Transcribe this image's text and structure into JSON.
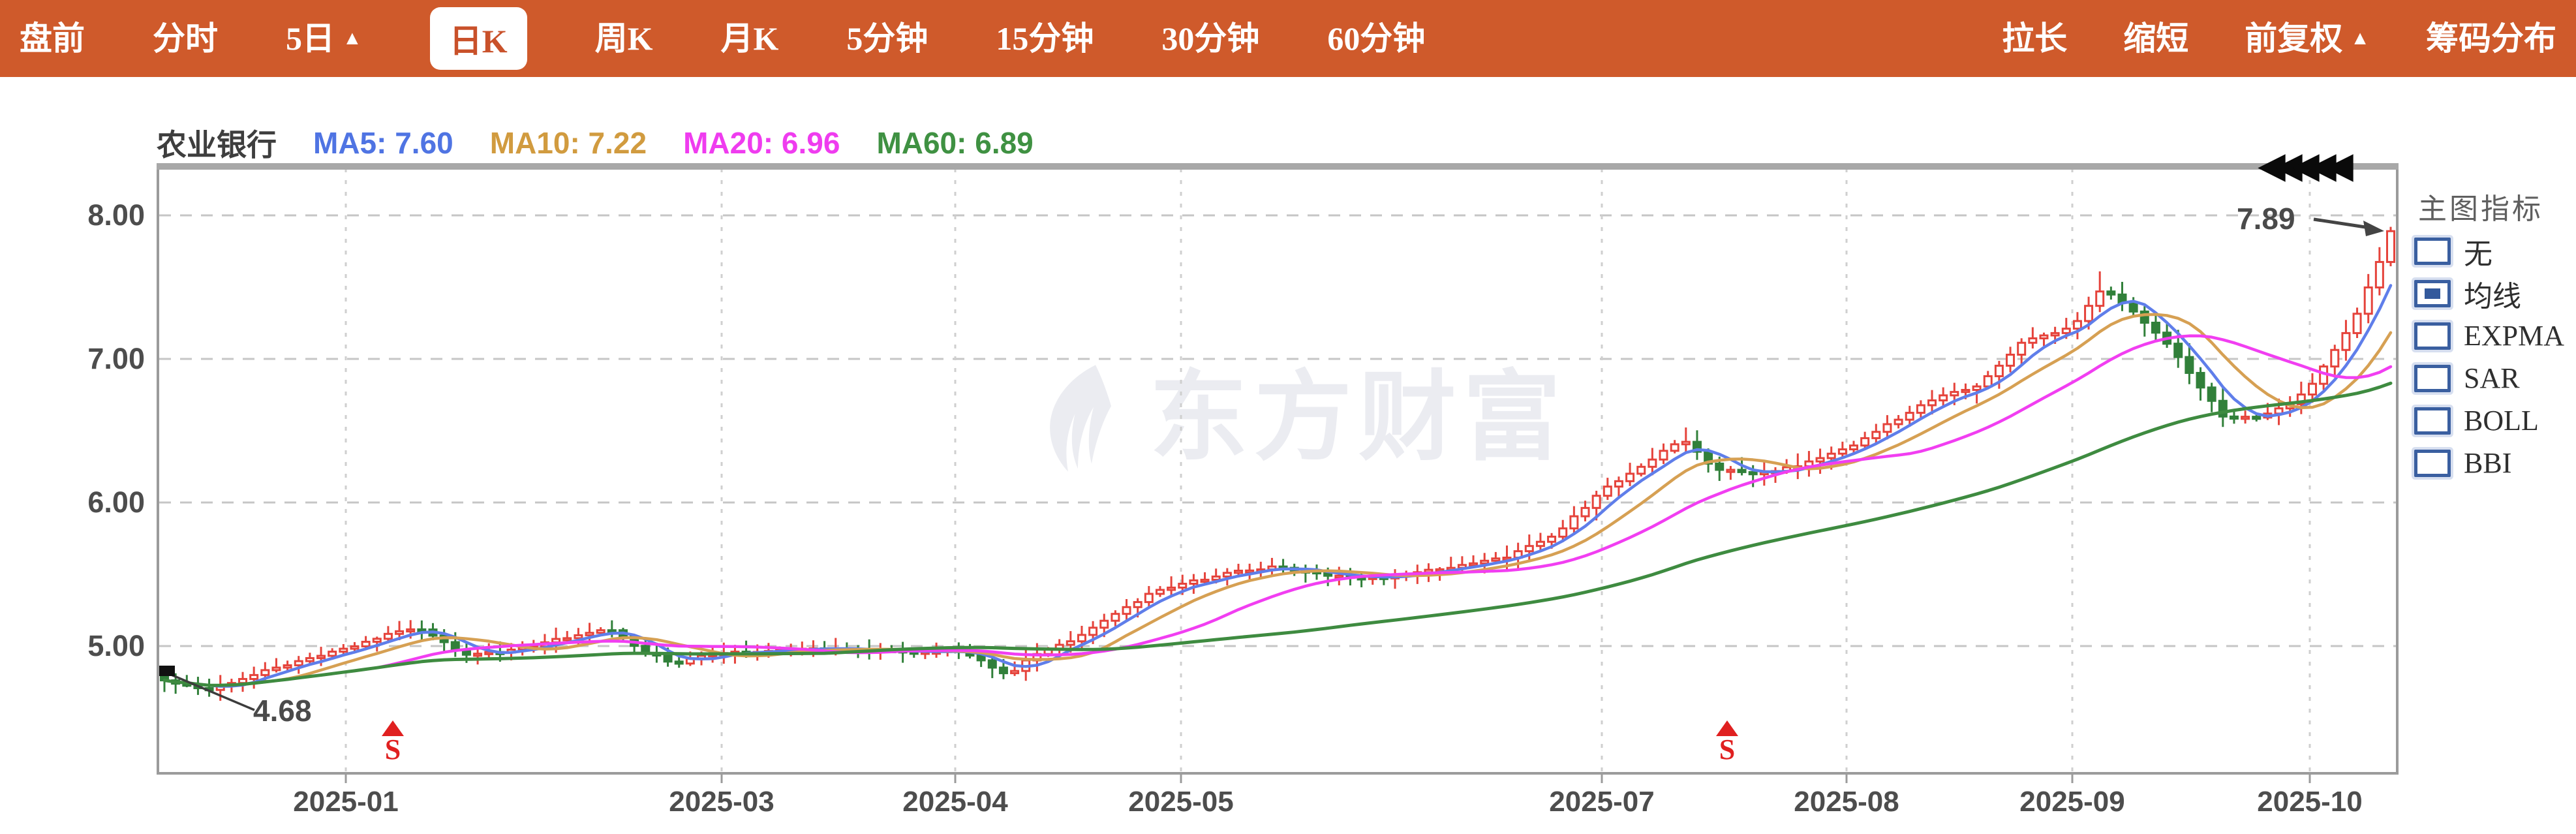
{
  "toolbar": {
    "background": "#cf5a2b",
    "left_items": [
      {
        "label": "盘前",
        "selected": false
      },
      {
        "label": "分时",
        "selected": false
      },
      {
        "label": "5日",
        "arrow": "▲",
        "selected": false
      },
      {
        "label": "日K",
        "selected": true
      },
      {
        "label": "周K",
        "selected": false
      },
      {
        "label": "月K",
        "selected": false
      },
      {
        "label": "5分钟",
        "selected": false
      },
      {
        "label": "15分钟",
        "selected": false
      },
      {
        "label": "30分钟",
        "selected": false
      },
      {
        "label": "60分钟",
        "selected": false
      }
    ],
    "right_items": [
      {
        "label": "拉长"
      },
      {
        "label": "缩短"
      },
      {
        "label": "前复权",
        "arrow": "▲"
      },
      {
        "label": "筹码分布"
      }
    ]
  },
  "legend": {
    "stock_name": "农业银行",
    "ma_items": [
      {
        "label": "MA5: 7.60",
        "color": "#4f74e3"
      },
      {
        "label": "MA10: 7.22",
        "color": "#d19b3f"
      },
      {
        "label": "MA20: 6.96",
        "color": "#ef3cef"
      },
      {
        "label": "MA60: 6.89",
        "color": "#3f9142"
      }
    ]
  },
  "indicator_panel": {
    "title": "主图指标",
    "options": [
      {
        "label": "无",
        "checked": false
      },
      {
        "label": "均线",
        "checked": true
      },
      {
        "label": "EXPMA",
        "checked": false
      },
      {
        "label": "SAR",
        "checked": false
      },
      {
        "label": "BOLL",
        "checked": false
      },
      {
        "label": "BBI",
        "checked": false
      }
    ]
  },
  "watermark": {
    "text": "东方财富"
  },
  "chart_data": {
    "type": "candlestick",
    "symbol": "农业银行",
    "period": "日K",
    "y_ticks": [
      "8.00",
      "7.00",
      "6.00",
      "5.00"
    ],
    "y_tick_values": [
      8,
      7,
      6,
      5
    ],
    "x_ticks": [
      "2025-01",
      "2025-03",
      "2025-04",
      "2025-05",
      "2025-07",
      "2025-08",
      "2025-09",
      "2025-10"
    ],
    "ma_values": {
      "MA5": 7.6,
      "MA10": 7.22,
      "MA20": 6.96,
      "MA60": 6.89
    },
    "annotations": {
      "first_low_label": "4.68",
      "last_price_label": "7.89",
      "sell_marker": "S",
      "scroll_glyphs": "◀◀◀◀◀"
    },
    "candle_count": 200,
    "close_anchors": [
      [
        0.0,
        4.76
      ],
      [
        0.02,
        4.7
      ],
      [
        0.05,
        4.85
      ],
      [
        0.082,
        4.98
      ],
      [
        0.1,
        5.08
      ],
      [
        0.115,
        5.12
      ],
      [
        0.135,
        4.93
      ],
      [
        0.16,
        4.98
      ],
      [
        0.185,
        5.08
      ],
      [
        0.2,
        5.13
      ],
      [
        0.215,
        4.96
      ],
      [
        0.23,
        4.88
      ],
      [
        0.245,
        4.95
      ],
      [
        0.27,
        4.97
      ],
      [
        0.3,
        4.99
      ],
      [
        0.33,
        4.96
      ],
      [
        0.356,
        4.97
      ],
      [
        0.368,
        4.9
      ],
      [
        0.378,
        4.79
      ],
      [
        0.39,
        4.93
      ],
      [
        0.41,
        5.05
      ],
      [
        0.43,
        5.25
      ],
      [
        0.445,
        5.38
      ],
      [
        0.457,
        5.43
      ],
      [
        0.48,
        5.52
      ],
      [
        0.5,
        5.55
      ],
      [
        0.52,
        5.5
      ],
      [
        0.545,
        5.47
      ],
      [
        0.565,
        5.52
      ],
      [
        0.585,
        5.57
      ],
      [
        0.605,
        5.63
      ],
      [
        0.625,
        5.78
      ],
      [
        0.646,
        6.08
      ],
      [
        0.66,
        6.22
      ],
      [
        0.682,
        6.45
      ],
      [
        0.695,
        6.24
      ],
      [
        0.715,
        6.2
      ],
      [
        0.735,
        6.26
      ],
      [
        0.756,
        6.38
      ],
      [
        0.775,
        6.55
      ],
      [
        0.795,
        6.72
      ],
      [
        0.815,
        6.82
      ],
      [
        0.835,
        7.12
      ],
      [
        0.857,
        7.22
      ],
      [
        0.871,
        7.5
      ],
      [
        0.885,
        7.32
      ],
      [
        0.9,
        7.1
      ],
      [
        0.912,
        6.85
      ],
      [
        0.925,
        6.6
      ],
      [
        0.94,
        6.6
      ],
      [
        0.955,
        6.68
      ],
      [
        0.966,
        6.85
      ],
      [
        0.976,
        7.08
      ],
      [
        0.986,
        7.35
      ],
      [
        0.993,
        7.6
      ],
      [
        1.0,
        7.89
      ]
    ],
    "colors": {
      "up": "#e5433b",
      "down": "#31803a",
      "ma5": "#5f7eea",
      "ma10": "#d6a053",
      "ma20": "#f13ef1",
      "ma60": "#3e8b40",
      "grid": "#c6c6c6",
      "axis": "#9b9b9b"
    }
  }
}
